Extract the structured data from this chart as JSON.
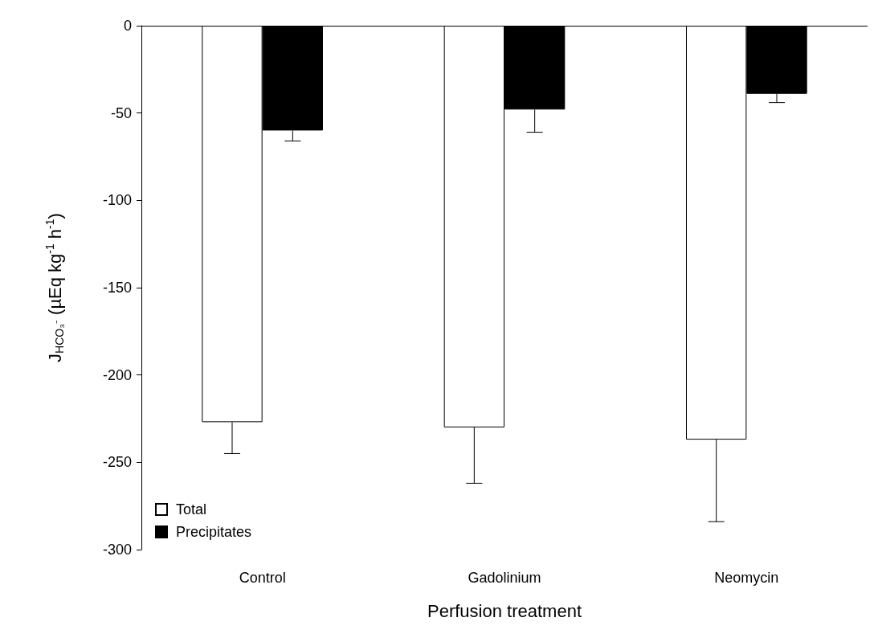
{
  "chart_data": {
    "type": "bar",
    "xlabel": "Perfusion treatment",
    "ylabel": "J$_{HCO₃⁻}$ (µEq kg$^{-1}$ h$^{-1}$)",
    "categories": [
      "Control",
      "Gadolinium",
      "Neomycin"
    ],
    "series": [
      {
        "name": "Total",
        "color": "#ffffff",
        "values": [
          -227,
          -230,
          -237
        ],
        "errors": [
          [
            -245,
            -227
          ],
          [
            -262,
            -230
          ],
          [
            -284,
            -237
          ]
        ]
      },
      {
        "name": "Precipitates",
        "color": "#000000",
        "values": [
          -60,
          -48,
          -39
        ],
        "errors": [
          [
            -66,
            -60
          ],
          [
            -61,
            -48
          ],
          [
            -44,
            -39
          ]
        ]
      }
    ],
    "ylim": [
      -300,
      0
    ],
    "yticks": [
      -300,
      -250,
      -200,
      -150,
      -100,
      -50,
      0
    ],
    "grid": false,
    "legend": "bottom left"
  }
}
